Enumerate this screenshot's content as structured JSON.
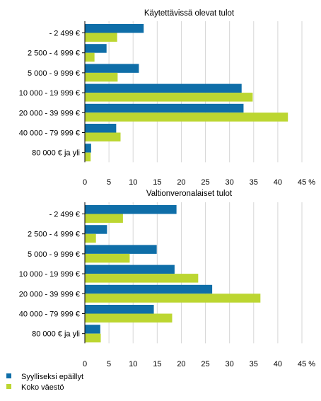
{
  "colors": {
    "series1": "#0f6ea8",
    "series2": "#bcd631",
    "grid": "#d6d6d6"
  },
  "chart_data": [
    {
      "type": "bar",
      "orientation": "horizontal",
      "title": "Käytettävissä olevat tulot",
      "categories": [
        "- 2 499 €",
        "2 500 - 4 999 €",
        "5 000 - 9 999 €",
        "10 000 - 19 999 €",
        "20 000 - 39 999 €",
        "40 000 - 79 999 €",
        "80 000 € ja yli"
      ],
      "series": [
        {
          "name": "Syylliseksi epäillyt",
          "values": [
            12.2,
            4.5,
            11.2,
            32.5,
            32.9,
            6.5,
            1.3
          ]
        },
        {
          "name": "Koko väestö",
          "values": [
            6.7,
            2.0,
            6.8,
            34.8,
            42.1,
            7.4,
            1.2
          ]
        }
      ],
      "xlim": [
        0,
        45
      ],
      "ticks": [
        "0",
        "5",
        "10",
        "15",
        "20",
        "25",
        "30",
        "35",
        "40",
        "45 %"
      ],
      "grid": true
    },
    {
      "type": "bar",
      "orientation": "horizontal",
      "title": "Valtionveronalaiset tulot",
      "categories": [
        "- 2 499 €",
        "2 500 - 4 999 €",
        "5 000 - 9 999 €",
        "10 000 - 19 999 €",
        "20 000 - 39 999 €",
        "40 000 - 79 999 €",
        "80 000 € ja yli"
      ],
      "series": [
        {
          "name": "Syylliseksi epäillyt",
          "values": [
            19.0,
            4.6,
            14.9,
            18.6,
            26.4,
            14.3,
            3.2
          ]
        },
        {
          "name": "Koko väestö",
          "values": [
            7.9,
            2.3,
            9.3,
            23.5,
            36.4,
            18.1,
            3.3
          ]
        }
      ],
      "xlim": [
        0,
        45
      ],
      "ticks": [
        "0",
        "5",
        "10",
        "15",
        "20",
        "25",
        "30",
        "35",
        "40",
        "45 %"
      ],
      "grid": true
    }
  ],
  "legend": {
    "placement": "bottom-left",
    "items": [
      "Syylliseksi epäillyt",
      "Koko väestö"
    ]
  }
}
